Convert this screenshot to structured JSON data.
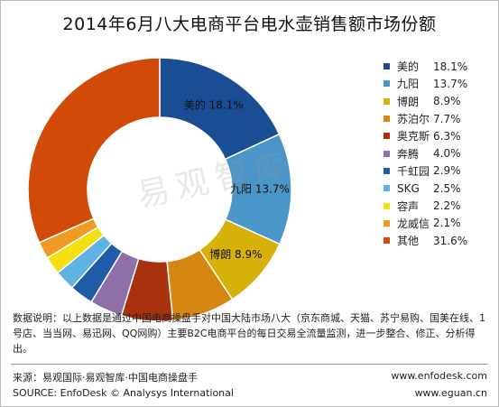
{
  "title": "2014年6月八大电商平台电水壶销售额市场份额",
  "watermark": "易观智库",
  "chart_data": {
    "type": "pie",
    "donut": true,
    "title": "2014年6月八大电商平台电水壶销售额市场份额",
    "unit": "%",
    "legend_position": "right",
    "slices": [
      {
        "name": "美的",
        "value": 18.1,
        "color": "#1a4e94",
        "label": "美的  18.1%"
      },
      {
        "name": "九阳",
        "value": 13.7,
        "color": "#4a96c8",
        "label": "九阳  13.7%"
      },
      {
        "name": "博朗",
        "value": 8.9,
        "color": "#d6b10a",
        "label": "博朗  8.9%"
      },
      {
        "name": "苏泊尔",
        "value": 7.7,
        "color": "#d58711",
        "label": ""
      },
      {
        "name": "奥克斯",
        "value": 6.3,
        "color": "#a8320d",
        "label": ""
      },
      {
        "name": "奔腾",
        "value": 4.0,
        "color": "#8e6fa6",
        "label": ""
      },
      {
        "name": "千虹园",
        "value": 2.9,
        "color": "#1f5ca8",
        "label": ""
      },
      {
        "name": "SKG",
        "value": 2.5,
        "color": "#5db4e2",
        "label": ""
      },
      {
        "name": "容声",
        "value": 2.2,
        "color": "#f5df10",
        "label": ""
      },
      {
        "name": "龙威信",
        "value": 2.1,
        "color": "#f09a24",
        "label": ""
      },
      {
        "name": "其他",
        "value": 31.6,
        "color": "#d14a08",
        "label": ""
      }
    ]
  },
  "legend": [
    {
      "name": "美的",
      "value": "18.1%"
    },
    {
      "name": "九阳",
      "value": "13.7%"
    },
    {
      "name": "博朗",
      "value": "8.9%"
    },
    {
      "name": "苏泊尔",
      "value": "7.7%"
    },
    {
      "name": "奥克斯",
      "value": "6.3%"
    },
    {
      "name": "奔腾",
      "value": "4.0%"
    },
    {
      "name": "千虹园",
      "value": "2.9%"
    },
    {
      "name": "SKG",
      "value": "2.5%"
    },
    {
      "name": "容声",
      "value": "2.2%"
    },
    {
      "name": "龙威信",
      "value": "2.1%"
    },
    {
      "name": "其他",
      "value": "31.6%"
    }
  ],
  "note": "数据说明：以上数据是通过中国电商操盘手对中国大陆市场八大（京东商城、天猫、苏宁易购、国美在线、1号店、当当网、易迅网、QQ网购）主要B2C电商平台的每日交易全流量监测，进一步整合、修正、分析得出。",
  "footer": {
    "source_cn": "来源：易观国际·易观智库·中国电商操盘手",
    "source_en": "SOURCE: EnfoDesk © Analysys International",
    "url1": "www.enfodesk.com",
    "url2": "www.eguan.cn"
  }
}
